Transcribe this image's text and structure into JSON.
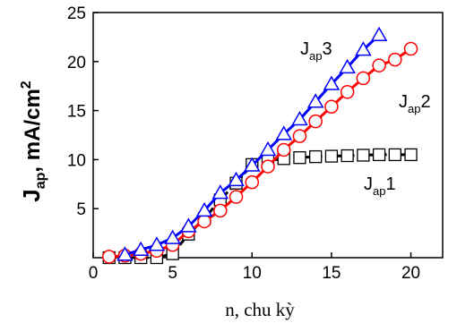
{
  "chart_data": {
    "type": "line",
    "title": "",
    "xlabel": "n, chu kỳ",
    "ylabel": {
      "main": "J",
      "sub": "ap",
      "rest": ", mA/cm",
      "sup": "2"
    },
    "xlim": [
      0,
      22
    ],
    "ylim": [
      0,
      25
    ],
    "xticks": [
      0,
      5,
      10,
      15,
      20
    ],
    "yticks": [
      5,
      10,
      15,
      20,
      25
    ],
    "grid": false,
    "legend": "none",
    "series": [
      {
        "name": "Jap1",
        "label_main": "J",
        "label_sub": "ap",
        "label_num": "1",
        "color": "#000000",
        "line_color": "#000000",
        "marker": "square",
        "x": [
          1,
          2,
          3,
          4,
          5,
          6,
          7,
          8,
          9,
          10,
          11,
          12,
          13,
          14,
          15,
          16,
          17,
          18,
          19,
          20
        ],
        "y": [
          0,
          0,
          0,
          0,
          0.4,
          2.4,
          4.0,
          5.9,
          7.6,
          9.5,
          9.9,
          10.1,
          10.2,
          10.3,
          10.35,
          10.4,
          10.45,
          10.5,
          10.5,
          10.5
        ]
      },
      {
        "name": "Jap2",
        "label_main": "J",
        "label_sub": "ap",
        "label_num": "2",
        "color": "#ff0000",
        "line_color": "#ff0000",
        "marker": "circle",
        "x": [
          1,
          2,
          3,
          4,
          5,
          6,
          7,
          8,
          9,
          10,
          11,
          12,
          13,
          14,
          15,
          16,
          17,
          18,
          19,
          20
        ],
        "y": [
          0.1,
          0.2,
          0.4,
          0.7,
          1.3,
          2.7,
          3.7,
          4.8,
          6.2,
          7.7,
          9.3,
          11.0,
          12.4,
          13.9,
          15.4,
          16.9,
          18.3,
          19.6,
          20.2,
          21.3
        ]
      },
      {
        "name": "Jap3",
        "label_main": "J",
        "label_sub": "ap",
        "label_num": "3",
        "color": "#0000ff",
        "line_color": "#0000ff",
        "marker": "triangle",
        "x": [
          2,
          3,
          4,
          5,
          6,
          7,
          8,
          9,
          10,
          11,
          12,
          13,
          14,
          15,
          16,
          17,
          18
        ],
        "y": [
          0.3,
          0.8,
          1.3,
          2.0,
          3.2,
          4.8,
          6.6,
          7.9,
          9.4,
          11.0,
          12.6,
          14.1,
          15.9,
          17.7,
          19.4,
          21.2,
          22.7
        ]
      }
    ]
  }
}
